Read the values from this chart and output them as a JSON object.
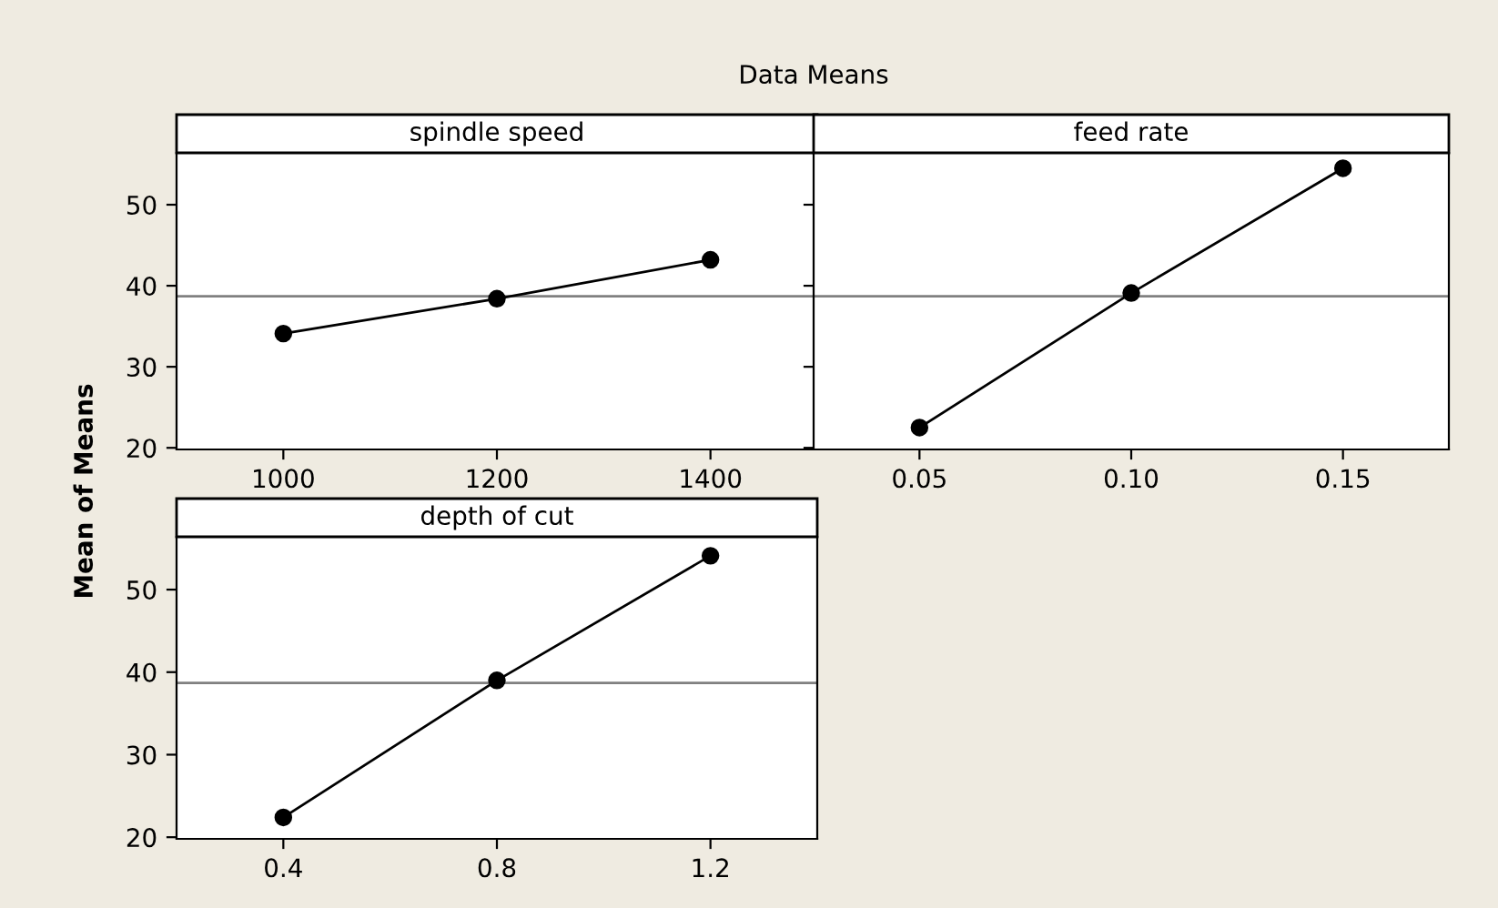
{
  "chart_data": [
    {
      "type": "line",
      "title": "spindle speed",
      "ylabel": "Mean of Means",
      "annotations": [
        "Data Means"
      ],
      "x": [
        1000,
        1200,
        1400
      ],
      "series": [
        {
          "color": "#000000",
          "values": [
            34.1,
            38.4,
            43.2
          ]
        }
      ],
      "xlim": [
        900,
        1500
      ],
      "xticks": [
        1000,
        1200,
        1400
      ],
      "ylim": [
        19.8,
        56.4
      ],
      "yticks": [
        20,
        30,
        40,
        50
      ],
      "ref_lines": [
        {
          "axis": "y",
          "value": 38.7,
          "color": "#808080"
        }
      ],
      "marker": "circle",
      "line_style": "solid",
      "grid": false,
      "legend": false
    },
    {
      "type": "line",
      "title": "feed rate",
      "x": [
        0.05,
        0.1,
        0.15
      ],
      "series": [
        {
          "color": "#000000",
          "values": [
            22.5,
            39.1,
            54.5
          ]
        }
      ],
      "xlim": [
        0.025,
        0.175
      ],
      "xticks": [
        {
          "value": 0.05,
          "label": "0.05"
        },
        {
          "value": 0.1,
          "label": "0.10"
        },
        {
          "value": 0.15,
          "label": "0.15"
        }
      ],
      "ylim": [
        19.8,
        56.4
      ],
      "yticks": [
        20,
        30,
        40,
        50
      ],
      "tick_labels": "x",
      "ref_lines": [
        {
          "axis": "y",
          "value": 38.7,
          "color": "#808080"
        }
      ],
      "marker": "circle",
      "line_style": "solid",
      "grid": false,
      "legend": false
    },
    {
      "type": "line",
      "title": "depth of cut",
      "x": [
        0.4,
        0.8,
        1.2
      ],
      "series": [
        {
          "color": "#000000",
          "values": [
            22.4,
            39.0,
            54.1
          ]
        }
      ],
      "xlim": [
        0.2,
        1.4
      ],
      "xticks": [
        0.4,
        0.8,
        1.2
      ],
      "ylim": [
        19.8,
        56.4
      ],
      "yticks": [
        20,
        30,
        40,
        50
      ],
      "ref_lines": [
        {
          "axis": "y",
          "value": 38.7,
          "color": "#808080"
        }
      ],
      "marker": "circle",
      "line_style": "solid",
      "grid": false,
      "legend": false
    }
  ]
}
